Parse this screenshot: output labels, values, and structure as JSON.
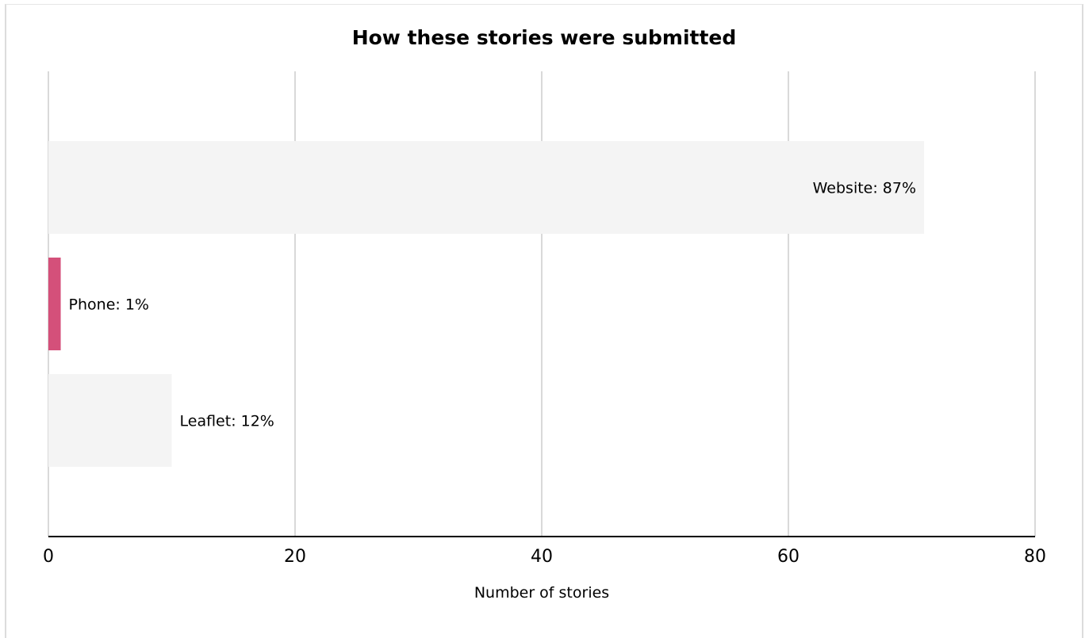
{
  "chart_data": {
    "type": "bar",
    "orientation": "horizontal",
    "title": "How these stories were submitted",
    "xlabel": "Number of stories",
    "ylabel": "",
    "xlim": [
      0,
      80
    ],
    "xticks": [
      0,
      20,
      40,
      60,
      80
    ],
    "grid": true,
    "legend": "none",
    "categories": [
      "Website",
      "Phone",
      "Leaflet"
    ],
    "values": [
      71,
      1,
      10
    ],
    "data_labels": [
      "Website: 87%",
      "Phone: 1%",
      "Leaflet: 12%"
    ],
    "colors": [
      "#f4f4f4",
      "#d4507a",
      "#f4f4f4"
    ],
    "gridline_color": "#d9d9d9",
    "axis_color": "#000000"
  }
}
